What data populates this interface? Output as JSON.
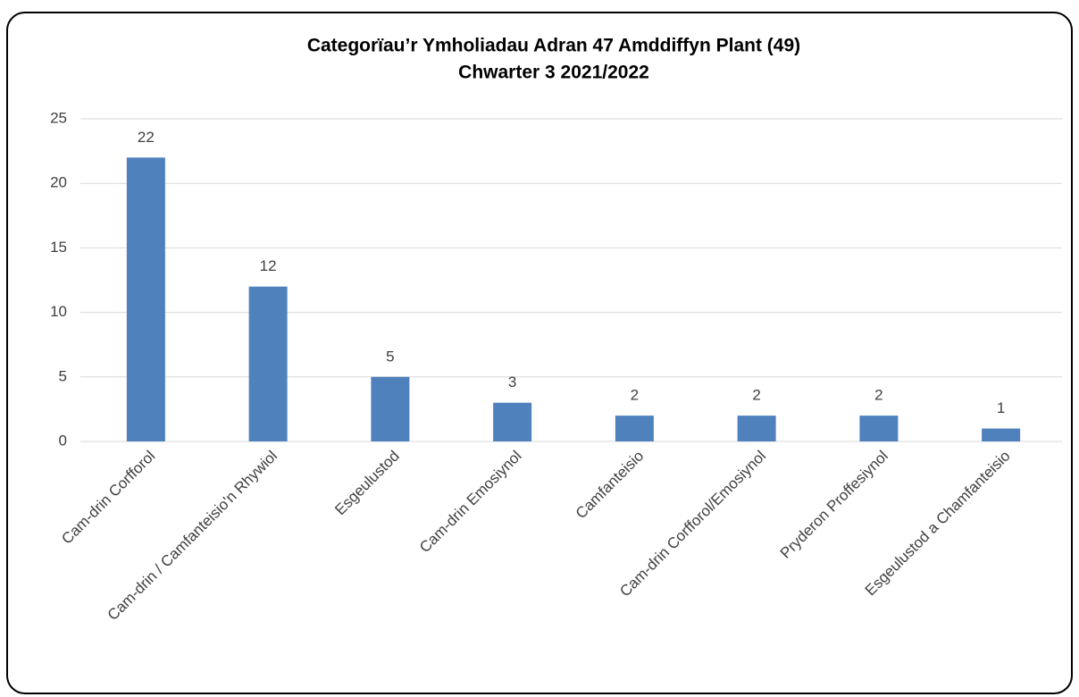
{
  "chart_data": {
    "type": "bar",
    "title": "Categorïau’r Ymholiadau Adran 47 Amddiffyn Plant (49)",
    "subtitle": "Chwarter 3  2021/2022",
    "categories": [
      "Cam-drin Corfforol",
      "Cam-drin / Camfanteisio'n Rhywiol",
      "Esgeulustod",
      "Cam-drin Emosiynol",
      "Camfanteisio",
      "Cam-drin Corfforol/Emosiynol",
      "Pryderon Proffesiynol",
      "Esgeulustod a Chamfanteisio"
    ],
    "values": [
      22,
      12,
      5,
      3,
      2,
      2,
      2,
      1
    ],
    "color": "#4f81bd",
    "ylim": [
      0,
      25
    ],
    "yticks": [
      0,
      5,
      10,
      15,
      20,
      25
    ],
    "grid": true
  }
}
